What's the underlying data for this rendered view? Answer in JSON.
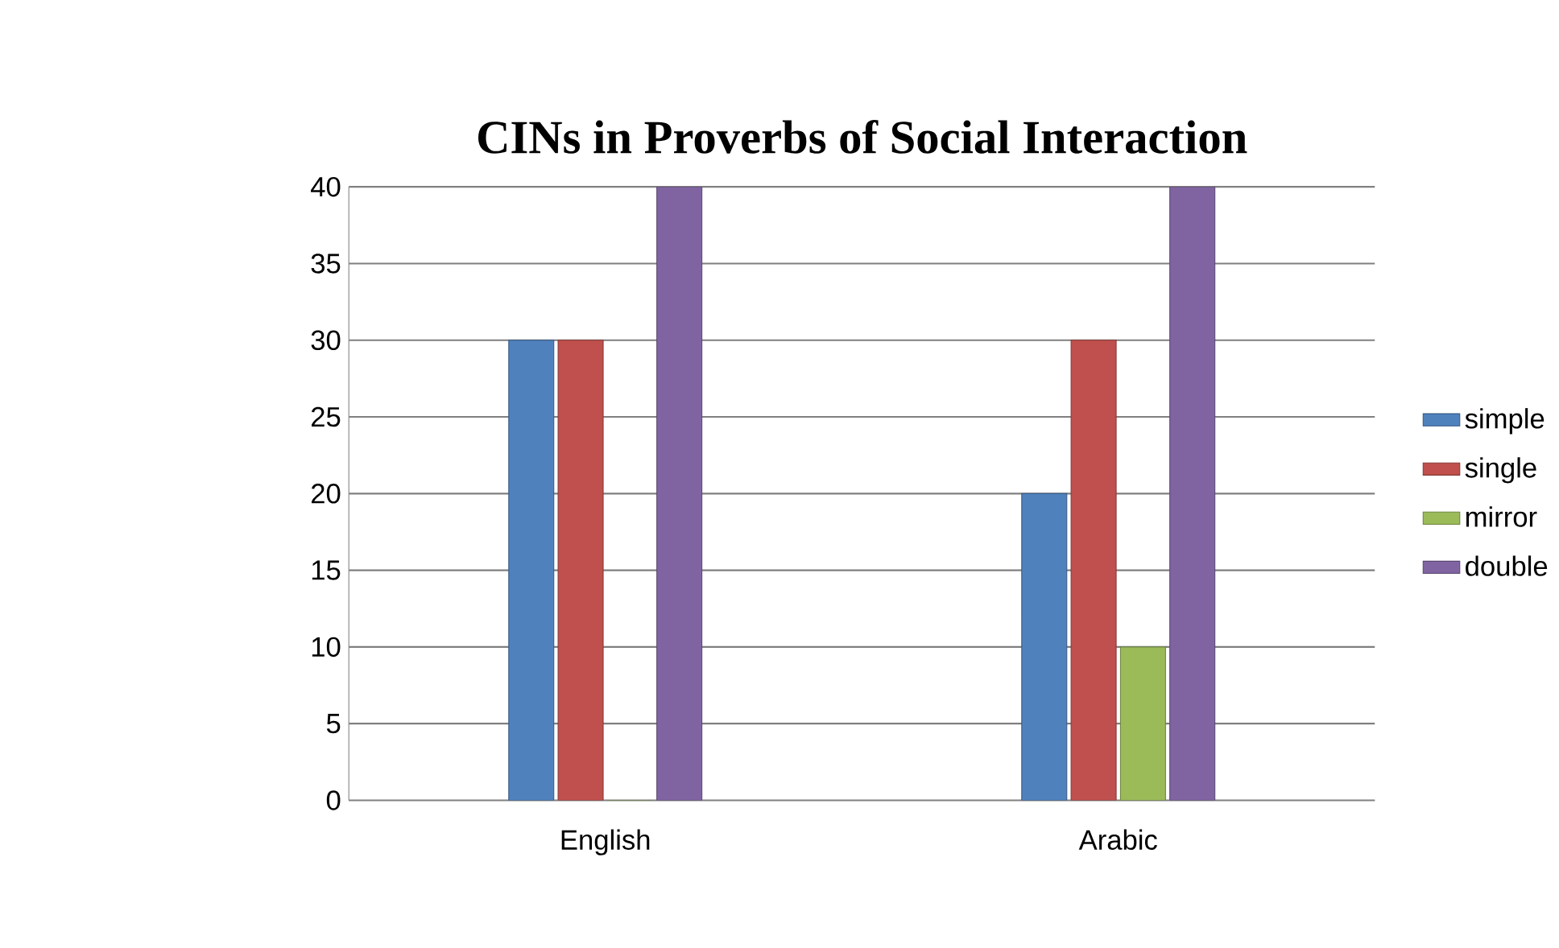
{
  "chart_data": {
    "type": "bar",
    "title": "CINs in Proverbs of Social Interaction",
    "categories": [
      "English",
      "Arabic"
    ],
    "series": [
      {
        "name": "simple",
        "color": "#4f81bd",
        "values": [
          30,
          20
        ]
      },
      {
        "name": "single",
        "color": "#c0504d",
        "values": [
          30,
          30
        ]
      },
      {
        "name": "mirror",
        "color": "#9bbb59",
        "values": [
          0,
          10
        ]
      },
      {
        "name": "double",
        "color": "#8064a2",
        "values": [
          40,
          40
        ]
      }
    ],
    "ylim": [
      0,
      40
    ],
    "yticks": [
      0,
      5,
      10,
      15,
      20,
      25,
      30,
      35,
      40
    ],
    "grid": "y",
    "legend": "right"
  }
}
